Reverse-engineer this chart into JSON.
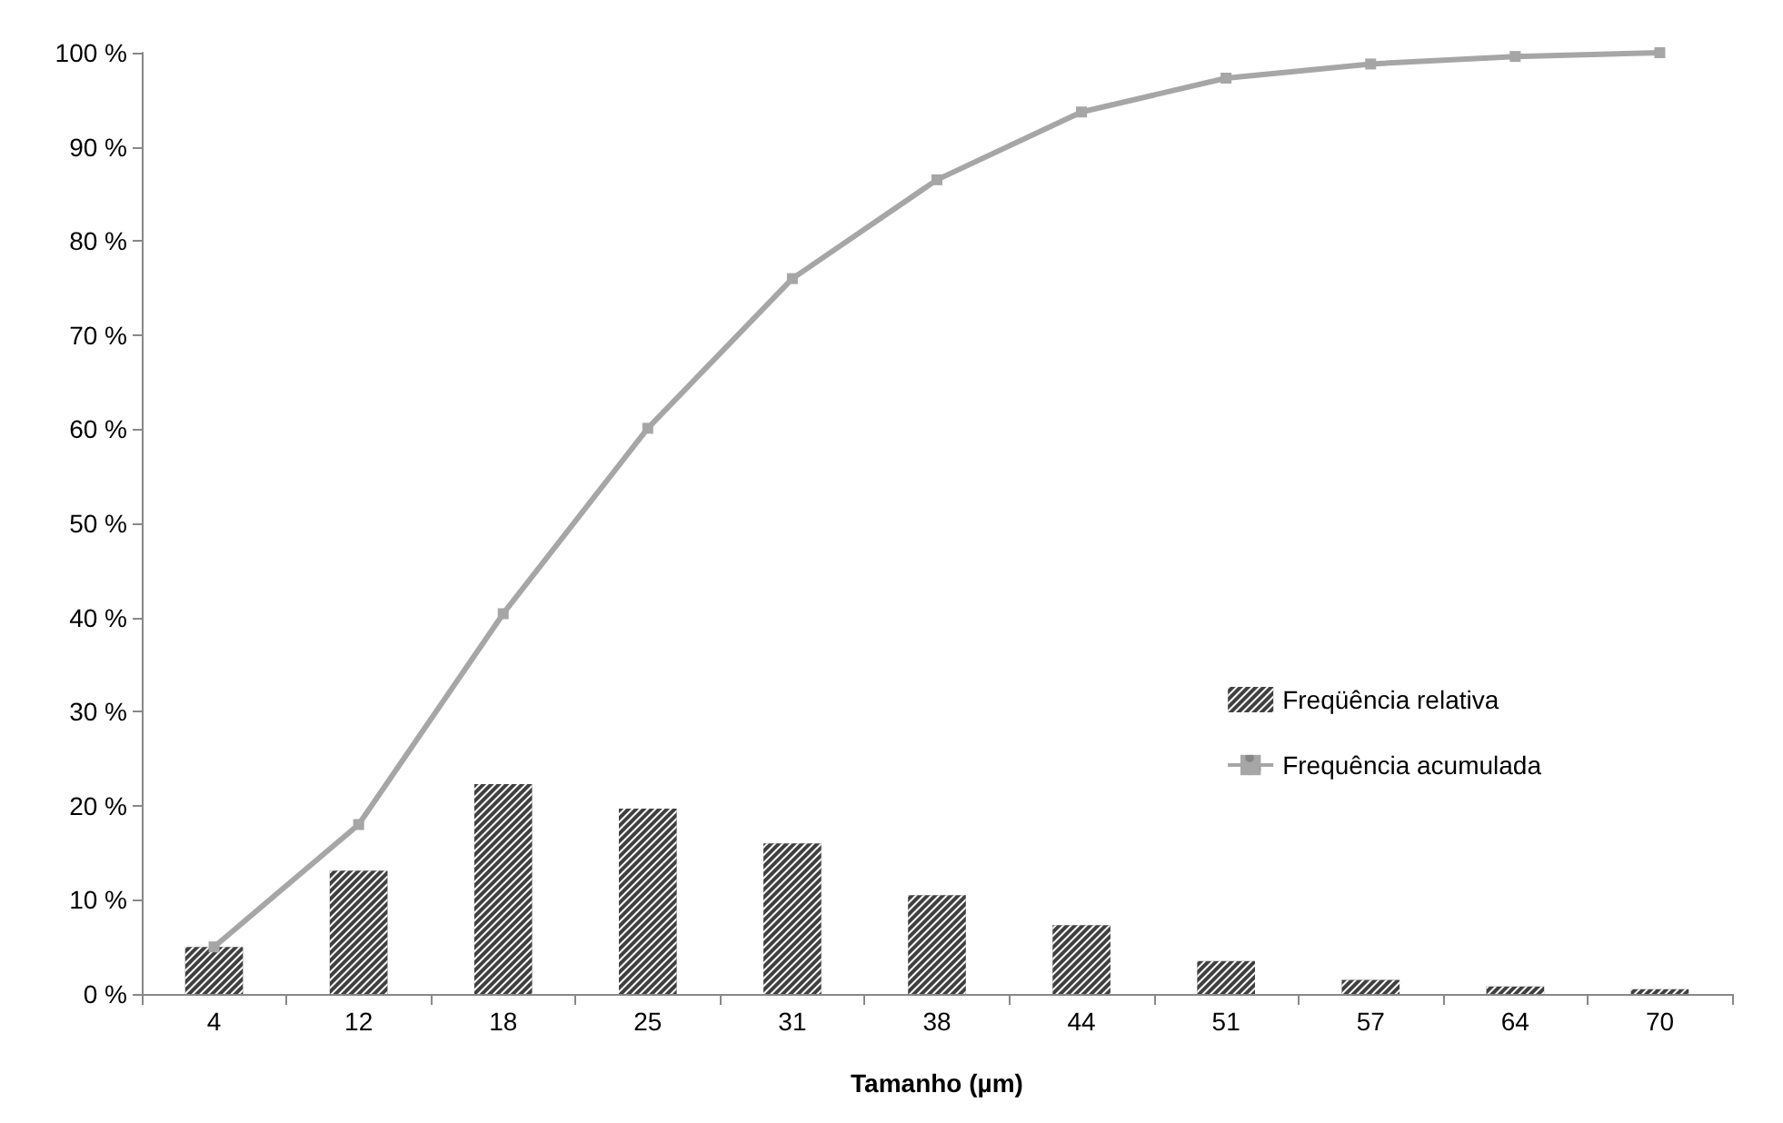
{
  "chart_data": {
    "type": "bar",
    "xlabel": "Tamanho (µm)",
    "categories": [
      "4",
      "12",
      "18",
      "25",
      "31",
      "38",
      "44",
      "51",
      "57",
      "64",
      "70"
    ],
    "series": [
      {
        "name": "Freqüência relativa",
        "color": "#404040",
        "values": [
          5,
          13.1,
          22.3,
          19.7,
          16,
          10.5,
          7.3,
          3.5,
          1.5,
          0.8,
          0.5
        ]
      },
      {
        "name": "Frequência acumulada",
        "type": "line",
        "color": "#a6a6a6",
        "marker": "square",
        "values": [
          5,
          18,
          40.4,
          60.1,
          76,
          86.5,
          93.7,
          97.3,
          98.8,
          99.6,
          100
        ]
      }
    ],
    "ylim": [
      0,
      100
    ],
    "yticks": [
      {
        "value": 0,
        "label": "0 %"
      },
      {
        "value": 10,
        "label": "10 %"
      },
      {
        "value": 20,
        "label": "20 %"
      },
      {
        "value": 30,
        "label": "30 %"
      },
      {
        "value": 40,
        "label": "40 %"
      },
      {
        "value": 50,
        "label": "50 %"
      },
      {
        "value": 60,
        "label": "60 %"
      },
      {
        "value": 70,
        "label": "70 %"
      },
      {
        "value": 80,
        "label": "80 %"
      },
      {
        "value": 90,
        "label": "90 %"
      },
      {
        "value": 100,
        "label": "100 %"
      }
    ],
    "grid": false,
    "legend": "right"
  }
}
